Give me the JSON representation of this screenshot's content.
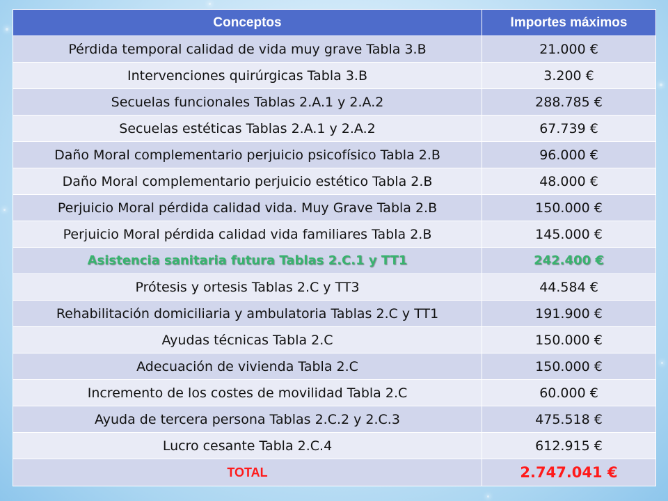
{
  "table": {
    "headers": [
      "Conceptos",
      "Importes máximos"
    ],
    "rows": [
      {
        "concept": "Pérdida temporal calidad de vida muy grave Tabla 3.B",
        "amount": "21.000 €"
      },
      {
        "concept": "Intervenciones quirúrgicas Tabla 3.B",
        "amount": "3.200 €"
      },
      {
        "concept": "Secuelas funcionales Tablas 2.A.1 y 2.A.2",
        "amount": "288.785 €"
      },
      {
        "concept": "Secuelas estéticas Tablas 2.A.1 y 2.A.2",
        "amount": "67.739 €"
      },
      {
        "concept": "Daño Moral complementario perjuicio psicofísico Tabla 2.B",
        "amount": "96.000 €"
      },
      {
        "concept": "Daño Moral complementario perjuicio estético Tabla 2.B",
        "amount": "48.000 €"
      },
      {
        "concept": "Perjuicio Moral pérdida calidad vida. Muy Grave Tabla 2.B",
        "amount": "150.000 €"
      },
      {
        "concept": "Perjuicio Moral pérdida calidad vida familiares Tabla 2.B",
        "amount": "145.000 €"
      },
      {
        "concept": "Asistencia sanitaria futura Tablas 2.C.1 y TT1",
        "amount": "242.400 €",
        "highlight": true
      },
      {
        "concept": "Prótesis y ortesis Tablas 2.C y TT3",
        "amount": "44.584 €"
      },
      {
        "concept": "Rehabilitación domiciliaria y ambulatoria Tablas 2.C y TT1",
        "amount": "191.900 €"
      },
      {
        "concept": "Ayudas técnicas Tabla 2.C",
        "amount": "150.000 €"
      },
      {
        "concept": "Adecuación de vivienda Tabla 2.C",
        "amount": "150.000 €"
      },
      {
        "concept": "Incremento de los costes de movilidad Tabla 2.C",
        "amount": "60.000 €"
      },
      {
        "concept": "Ayuda de tercera persona Tablas 2.C.2 y 2.C.3",
        "amount": "475.518 €"
      },
      {
        "concept": "Lucro cesante Tabla 2.C.4",
        "amount": "612.915 €"
      }
    ],
    "total": {
      "label": "TOTAL",
      "amount": "2.747.041 €"
    }
  },
  "colors": {
    "header_bg": "#4e6ccb",
    "row_odd_bg": "#d1d6ec",
    "row_even_bg": "#e9ebf6",
    "highlight_text": "#38b36e",
    "total_text": "#ff1a1a",
    "background": "#cfe8f8"
  }
}
